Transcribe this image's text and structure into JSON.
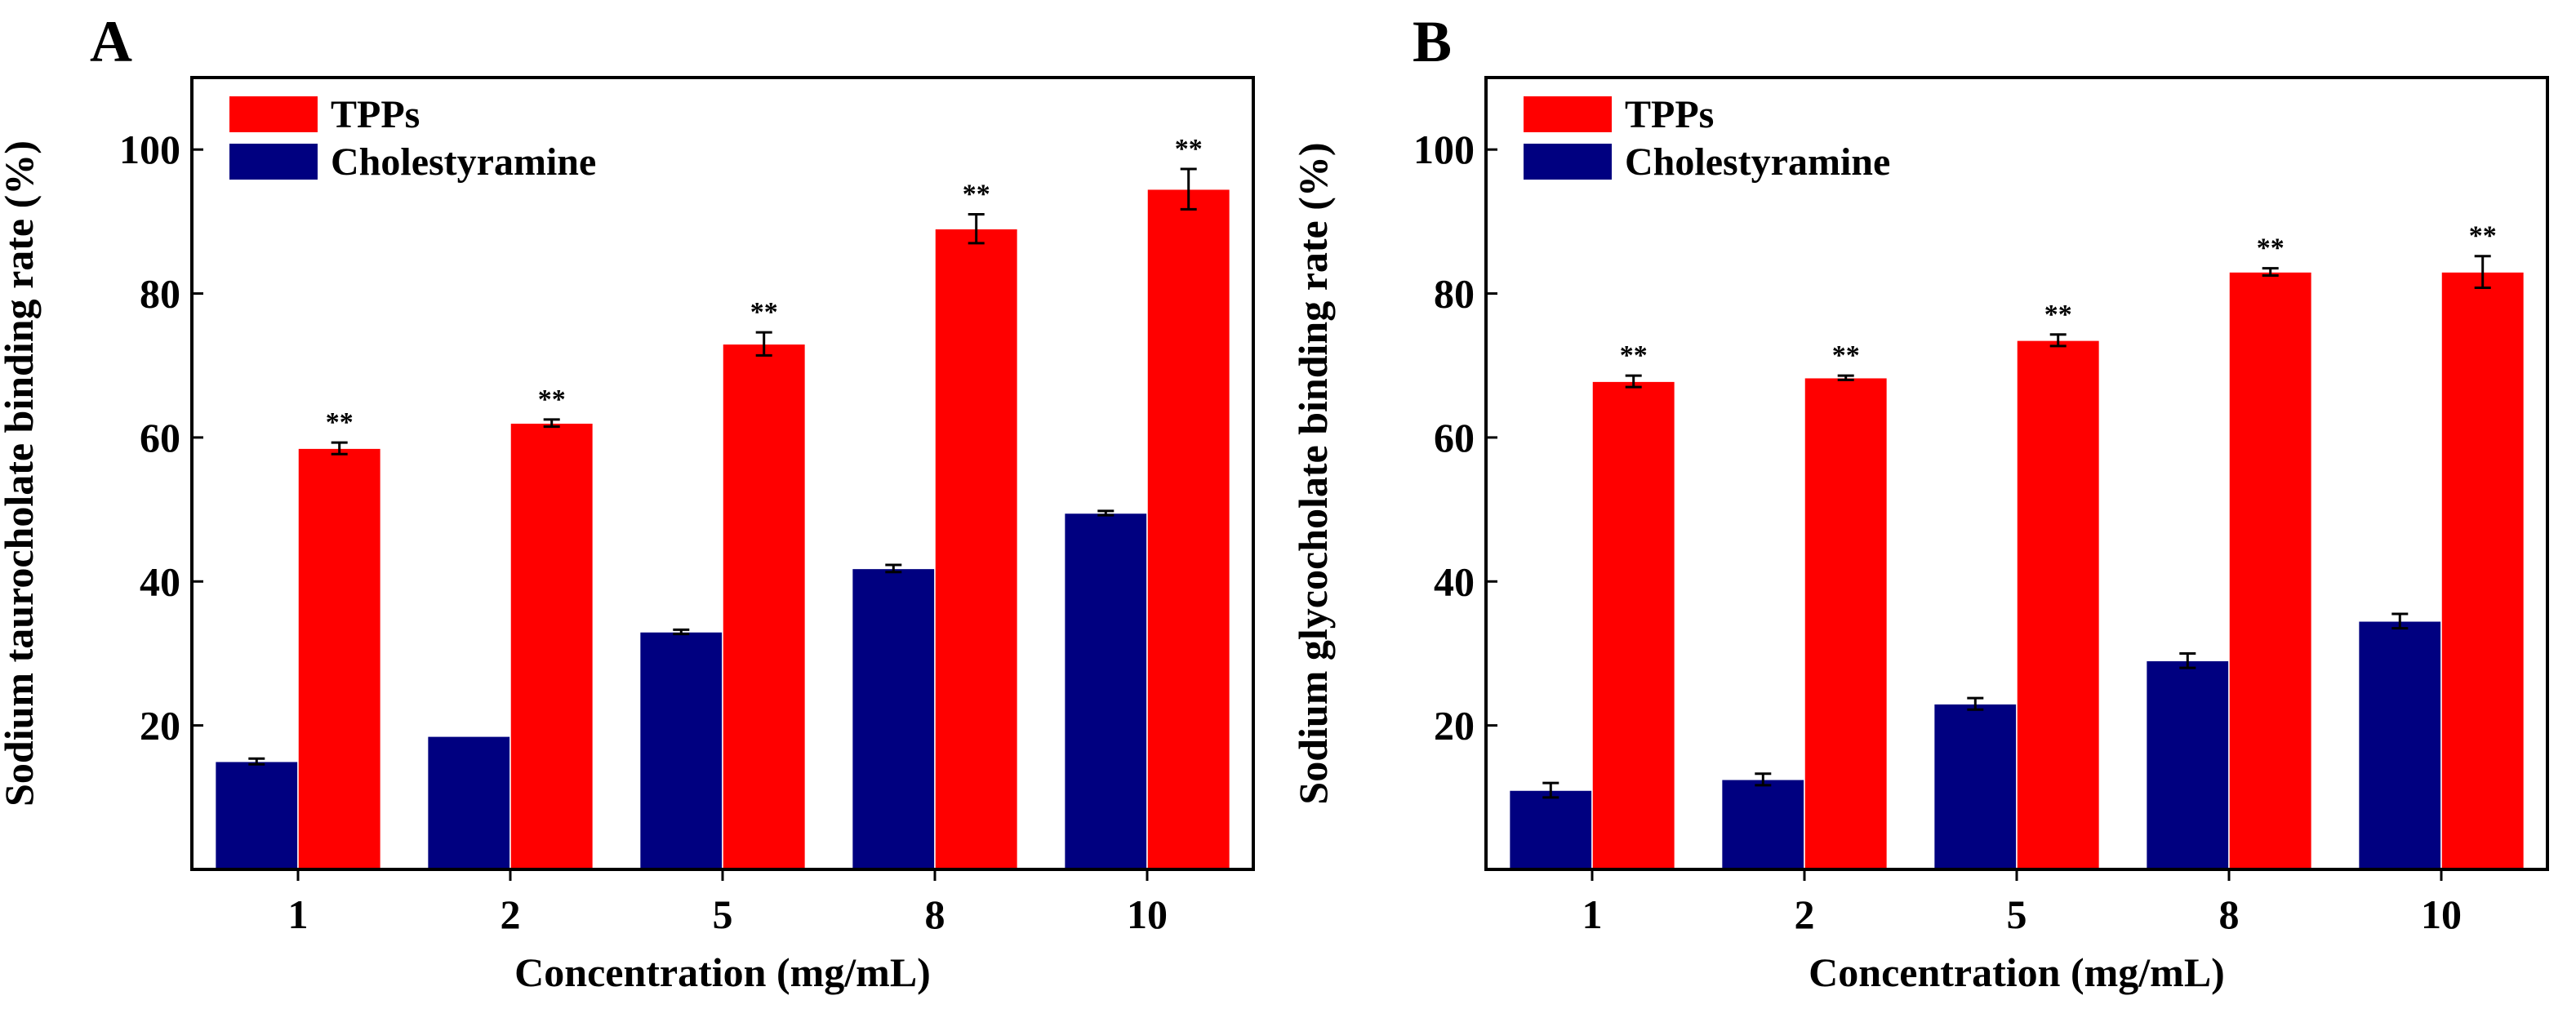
{
  "chart_data": [
    {
      "type": "bar",
      "panel": "A",
      "title": "",
      "xlabel": "Concentration (mg/mL)",
      "ylabel": "Sodium taurocholate binding rate (%)",
      "ylim": [
        0,
        110
      ],
      "yticks": [
        "20",
        "40",
        "60",
        "80",
        "100"
      ],
      "categories": [
        "1",
        "2",
        "5",
        "8",
        "10"
      ],
      "legend_position": "top-left",
      "series": [
        {
          "name": "Cholestyramine",
          "color": "#000080",
          "values": [
            15,
            18.5,
            33,
            41.8,
            49.5
          ],
          "errors": [
            0.4,
            0,
            0.3,
            0.5,
            0.3
          ],
          "labels": [
            "",
            "",
            "",
            "",
            ""
          ]
        },
        {
          "name": "TPPs",
          "color": "#ff0000",
          "values": [
            58.5,
            62,
            73,
            89,
            94.5
          ],
          "errors": [
            0.8,
            0.5,
            1.6,
            2,
            2.8
          ],
          "labels": [
            "**",
            "**",
            "**",
            "**",
            "**"
          ]
        }
      ]
    },
    {
      "type": "bar",
      "panel": "B",
      "title": "",
      "xlabel": "Concentration (mg/mL)",
      "ylabel": "Sodium glycocholate binding rate (%)",
      "ylim": [
        0,
        110
      ],
      "yticks": [
        "20",
        "40",
        "60",
        "80",
        "100"
      ],
      "categories": [
        "1",
        "2",
        "5",
        "8",
        "10"
      ],
      "legend_position": "top-left",
      "series": [
        {
          "name": "Cholestyramine",
          "color": "#000080",
          "values": [
            11,
            12.5,
            23,
            29,
            34.5
          ],
          "errors": [
            1,
            0.8,
            0.8,
            1,
            1
          ],
          "labels": [
            "",
            "",
            "",
            "",
            ""
          ]
        },
        {
          "name": "TPPs",
          "color": "#ff0000",
          "values": [
            67.8,
            68.3,
            73.5,
            83,
            83
          ],
          "errors": [
            0.8,
            0.3,
            0.8,
            0.5,
            2.2
          ],
          "labels": [
            "**",
            "**",
            "**",
            "**",
            "**"
          ]
        }
      ]
    }
  ]
}
